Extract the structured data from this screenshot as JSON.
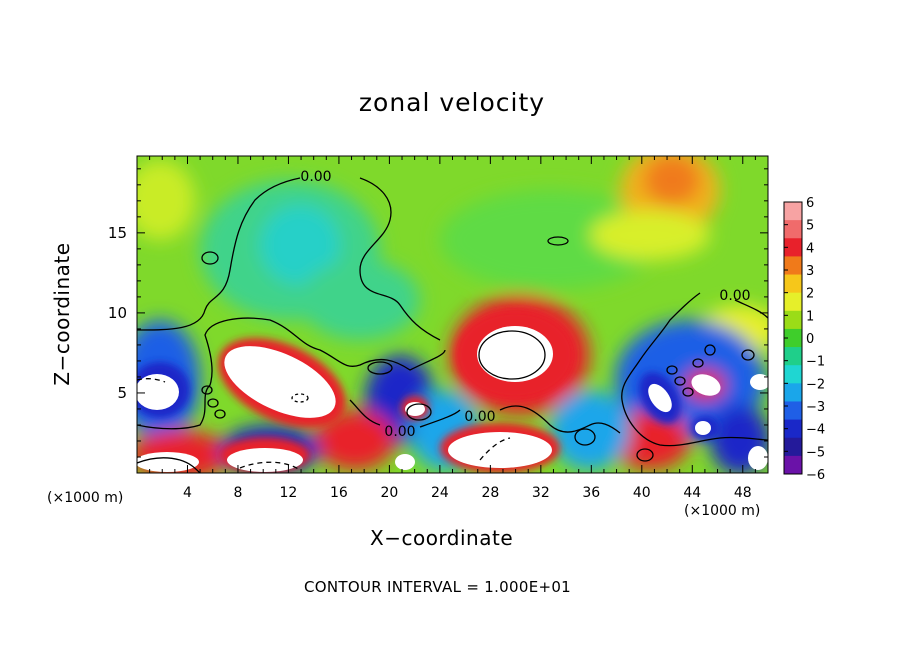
{
  "chart_data": {
    "type": "heatmap",
    "title": "zonal velocity",
    "xlabel": "X−coordinate",
    "ylabel": "Z−coordinate",
    "x_unit_label": "(×1000 m)",
    "x_ticks": [
      4,
      8,
      12,
      16,
      20,
      24,
      28,
      32,
      36,
      40,
      44,
      48
    ],
    "y_ticks": [
      5,
      10,
      15
    ],
    "xlim": [
      0,
      50
    ],
    "ylim": [
      0,
      19.8
    ],
    "colorbar": {
      "ticks": [
        6,
        5,
        4,
        3,
        2,
        1,
        0,
        -1,
        -2,
        -3,
        -4,
        -5,
        -6
      ],
      "range": [
        -6,
        6
      ],
      "colors": [
        "#f7a3a3",
        "#f06b6b",
        "#e8212b",
        "#f07a1a",
        "#f6c71a",
        "#e6ef2a",
        "#9bdc17",
        "#3fce2b",
        "#1fcf8a",
        "#1fd6d2",
        "#1aa6ea",
        "#1f5fe6",
        "#1a28c8",
        "#241a9a",
        "#6a12a8"
      ]
    },
    "contour_labels": [
      "0.00",
      "0.00",
      "0.00",
      "0.00"
    ],
    "contour_interval_text": "CONTOUR INTERVAL = 1.000E+01"
  }
}
